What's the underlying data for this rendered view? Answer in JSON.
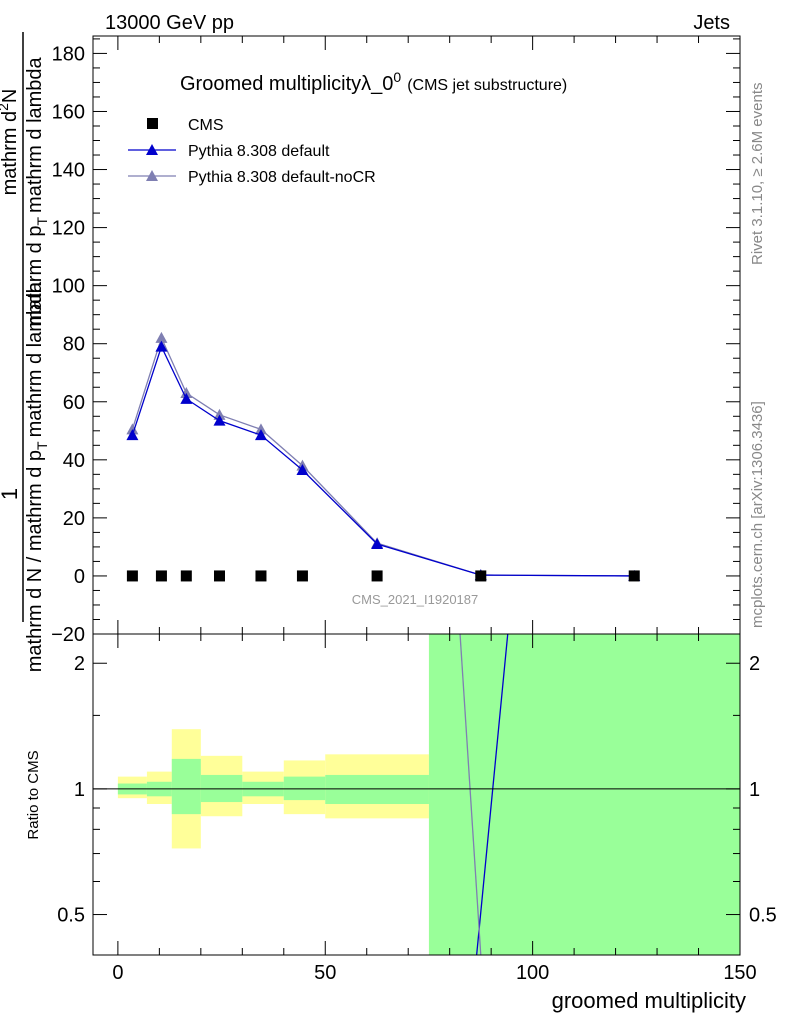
{
  "header": {
    "beam": "13000 GeV pp",
    "process": "Jets",
    "title": "Groomed multiplicityλ_0",
    "title_sup": "0",
    "title_suffix": "(CMS jet substructure)",
    "watermark": "CMS_2021_I1920187",
    "side_top": "Rivet 3.1.10, ≥ 2.6M events",
    "side_bottom": "mcplots.cern.ch [arXiv:1306.3436]"
  },
  "chart_data": [
    {
      "type": "line",
      "panel": "main",
      "xlabel": "groomed multiplicity",
      "ylabel": "1 / (mathrm d N / mathrm d p_T mathrm d lambda) · mathrm d²N / (mathrm d p_T mathrm d lambda)",
      "ylabel_parts": {
        "numerator_one": "1",
        "denominator": "mathrm d N / mathrm d p",
        "denominator_sub": "T",
        "denominator_tail": "mathrm d lambda",
        "top_line": "mathrm d",
        "top_sup": "2",
        "top_tail": "N",
        "bottom_line": "mathrm d p",
        "bottom_sub": "T",
        "bottom_tail": "mathrm d lambda"
      },
      "xlim": [
        -6,
        150
      ],
      "ylim": [
        -20,
        186
      ],
      "xticks": [
        0,
        50,
        100,
        150
      ],
      "yticks": [
        -20,
        0,
        20,
        40,
        60,
        80,
        100,
        120,
        140,
        160,
        180
      ],
      "yticklabels": [
        "−20",
        "0",
        "20",
        "40",
        "60",
        "80",
        "100",
        "120",
        "140",
        "160",
        "180"
      ],
      "legend_position": "top-left",
      "series": [
        {
          "name": "CMS",
          "marker": "square",
          "color": "#000000",
          "x": [
            3.5,
            10.5,
            16.5,
            24.5,
            34.5,
            44.5,
            62.5,
            87.5,
            124.5
          ],
          "y": [
            0,
            0,
            0,
            0,
            0,
            0,
            0,
            0,
            0
          ]
        },
        {
          "name": "Pythia 8.308 default",
          "marker": "triangle",
          "color": "#0000cc",
          "x": [
            3.5,
            10.5,
            16.5,
            24.5,
            34.5,
            44.5,
            62.5,
            87.5,
            124.5
          ],
          "y": [
            48.5,
            79,
            61,
            53.5,
            48.5,
            36.5,
            11,
            0.3,
            0
          ]
        },
        {
          "name": "Pythia 8.308 default-noCR",
          "marker": "triangle",
          "color": "#7f7fb2",
          "x": [
            3.5,
            10.5,
            16.5,
            24.5,
            34.5,
            44.5,
            62.5,
            87.5,
            124.5
          ],
          "y": [
            50.5,
            82,
            63,
            55.5,
            50.5,
            38,
            11.3,
            0.3,
            0
          ]
        }
      ]
    },
    {
      "type": "line",
      "panel": "ratio",
      "ylabel": "Ratio to CMS",
      "xlabel": "groomed multiplicity",
      "xlim": [
        -6,
        150
      ],
      "ylim": [
        0.4,
        2.35
      ],
      "yscale": "log",
      "yticks": [
        0.5,
        1,
        2
      ],
      "yticklabels": [
        "0.5",
        "1",
        "2"
      ],
      "reference_line": 1,
      "uncertainty_bands": {
        "bin_edges": [
          0,
          7,
          13,
          20,
          30,
          40,
          50,
          75,
          150
        ],
        "yellow_low": [
          0.95,
          0.92,
          0.72,
          0.86,
          0.92,
          0.87,
          0.85,
          0.4
        ],
        "yellow_high": [
          1.07,
          1.1,
          1.39,
          1.2,
          1.1,
          1.17,
          1.21,
          2.35
        ],
        "green_low": [
          0.97,
          0.96,
          0.87,
          0.93,
          0.96,
          0.94,
          0.92,
          0.4
        ],
        "green_high": [
          1.03,
          1.04,
          1.18,
          1.08,
          1.04,
          1.07,
          1.08,
          2.35
        ],
        "yellow_color": "#ffff99",
        "green_color": "#99ff99"
      },
      "series": [
        {
          "name": "Pythia 8.308 default",
          "color": "#0000cc",
          "x": [
            86.5,
            94.0
          ],
          "y": [
            0.4,
            2.35
          ]
        },
        {
          "name": "Pythia 8.308 default-noCR",
          "color": "#7f7fb2",
          "x": [
            82.5,
            87.5
          ],
          "y": [
            2.35,
            0.4
          ]
        }
      ]
    }
  ]
}
